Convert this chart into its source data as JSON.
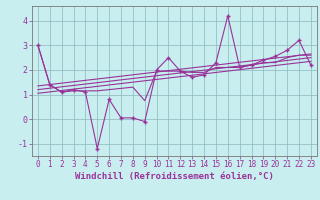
{
  "xlabel": "Windchill (Refroidissement éolien,°C)",
  "bg_color": "#c8eef0",
  "grid_color": "#8ab8bc",
  "line_color": "#993399",
  "xlim": [
    -0.5,
    23.5
  ],
  "ylim": [
    -1.5,
    4.6
  ],
  "yticks": [
    -1,
    0,
    1,
    2,
    3,
    4
  ],
  "xticks": [
    0,
    1,
    2,
    3,
    4,
    5,
    6,
    7,
    8,
    9,
    10,
    11,
    12,
    13,
    14,
    15,
    16,
    17,
    18,
    19,
    20,
    21,
    22,
    23
  ],
  "series1_x": [
    0,
    1,
    2,
    3,
    4,
    5,
    6,
    7,
    8,
    9,
    10,
    11,
    12,
    13,
    14,
    15,
    16,
    17,
    18,
    19,
    20,
    21,
    22,
    23
  ],
  "series1_y": [
    3.0,
    1.4,
    1.1,
    1.2,
    1.1,
    -1.2,
    0.8,
    0.05,
    0.05,
    -0.1,
    2.0,
    2.5,
    1.95,
    1.7,
    1.8,
    2.3,
    4.2,
    2.1,
    2.2,
    2.4,
    2.55,
    2.8,
    3.2,
    2.2
  ],
  "series2_x": [
    0,
    1,
    2,
    3,
    4,
    5,
    6,
    7,
    8,
    9,
    10,
    11,
    12,
    13,
    14,
    15,
    16,
    17,
    18,
    19,
    20,
    21,
    22,
    23
  ],
  "series2_y": [
    3.0,
    1.4,
    1.1,
    1.15,
    1.15,
    1.15,
    1.2,
    1.25,
    1.3,
    0.75,
    1.95,
    1.95,
    1.95,
    1.9,
    1.9,
    2.1,
    2.1,
    2.1,
    2.2,
    2.3,
    2.3,
    2.5,
    2.6,
    2.6
  ],
  "trend1_x": [
    0,
    23
  ],
  "trend1_y": [
    1.05,
    2.35
  ],
  "trend2_x": [
    0,
    23
  ],
  "trend2_y": [
    1.2,
    2.5
  ],
  "trend3_x": [
    0,
    23
  ],
  "trend3_y": [
    1.35,
    2.65
  ],
  "xlabel_fontsize": 6.5,
  "tick_fontsize": 5.5
}
